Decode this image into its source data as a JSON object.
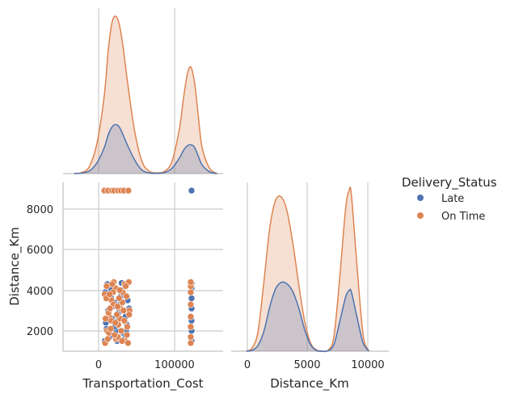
{
  "chart_data": {
    "type": "pairplot",
    "hue": {
      "title": "Delivery_Status",
      "levels": [
        {
          "name": "Late",
          "color": "#4c72b0"
        },
        {
          "name": "On Time",
          "color": "#dd8452"
        }
      ]
    },
    "variables": [
      "Transportation_Cost",
      "Distance_Km"
    ],
    "axes": {
      "Transportation_Cost": {
        "label": "Transportation_Cost",
        "range": [
          -55000,
          158000
        ],
        "ticks": [
          0,
          100000
        ],
        "tick_labels": [
          "0",
          "100000"
        ]
      },
      "Distance_Km": {
        "label": "Distance_Km",
        "range_y": [
          1000,
          9300
        ],
        "ticks_y": [
          2000,
          4000,
          6000,
          8000
        ],
        "tick_labels_y": [
          "2000",
          "4000",
          "6000",
          "8000"
        ],
        "range_x": [
          -1300,
          12200
        ],
        "ticks_x": [
          0,
          5000,
          10000
        ],
        "tick_labels_x": [
          "0",
          "5000",
          "10000"
        ]
      }
    },
    "kde": {
      "Transportation_Cost": {
        "x": [
          -40000,
          -30000,
          -20000,
          -10000,
          0,
          5000,
          10000,
          15000,
          20000,
          25000,
          30000,
          40000,
          50000,
          60000,
          70000,
          80000,
          90000,
          100000,
          105000,
          110000,
          115000,
          120000,
          125000,
          130000,
          140000,
          150000
        ],
        "series": [
          {
            "name": "Late",
            "values": [
              0.0,
              0.003,
              0.015,
              0.06,
              0.15,
              0.22,
              0.265,
              0.28,
              0.265,
              0.22,
              0.17,
              0.08,
              0.02,
              0.004,
              0.002,
              0.006,
              0.03,
              0.09,
              0.13,
              0.158,
              0.165,
              0.15,
              0.1,
              0.05,
              0.01,
              0.0
            ]
          },
          {
            "name": "On Time",
            "values": [
              0.0,
              0.006,
              0.04,
              0.17,
              0.45,
              0.7,
              0.86,
              0.9,
              0.85,
              0.72,
              0.55,
              0.25,
              0.07,
              0.013,
              0.004,
              0.013,
              0.07,
              0.26,
              0.42,
              0.56,
              0.61,
              0.52,
              0.33,
              0.15,
              0.03,
              0.0
            ]
          }
        ]
      },
      "Distance_Km": {
        "x": [
          0,
          500,
          1000,
          1500,
          2000,
          2500,
          3000,
          3500,
          4000,
          4500,
          5000,
          5500,
          6000,
          6500,
          7000,
          7500,
          8000,
          8500,
          8800,
          9000,
          9500,
          10000,
          10500
        ],
        "series": [
          {
            "name": "Late",
            "values": [
              0.0,
              0.006,
              0.035,
              0.12,
              0.27,
              0.38,
              0.42,
              0.41,
              0.36,
              0.26,
              0.13,
              0.04,
              0.004,
              0.0,
              0.003,
              0.04,
              0.18,
              0.33,
              0.37,
              0.36,
              0.2,
              0.05,
              0.0
            ]
          },
          {
            "name": "On Time",
            "values": [
              0.0,
              0.02,
              0.12,
              0.42,
              0.75,
              0.92,
              0.94,
              0.85,
              0.65,
              0.4,
              0.18,
              0.05,
              0.008,
              0.0,
              0.006,
              0.09,
              0.45,
              0.87,
              0.98,
              0.95,
              0.5,
              0.1,
              0.0
            ]
          }
        ]
      }
    },
    "scatter": {
      "x_var": "Transportation_Cost",
      "y_var": "Distance_Km",
      "series": [
        {
          "name": "Late",
          "points": [
            [
              2000,
              8900
            ],
            [
              28000,
              8900
            ],
            [
              116000,
              8900
            ],
            [
              500,
              1500
            ],
            [
              3000,
              2100
            ],
            [
              6000,
              2800
            ],
            [
              9000,
              3600
            ],
            [
              12000,
              4200
            ],
            [
              15000,
              1800
            ],
            [
              18000,
              2500
            ],
            [
              21000,
              3300
            ],
            [
              24000,
              4000
            ],
            [
              27000,
              1600
            ],
            [
              30000,
              2300
            ],
            [
              33000,
              3100
            ],
            [
              1000,
              3900
            ],
            [
              4000,
              4300
            ],
            [
              7000,
              1700
            ],
            [
              10000,
              2600
            ],
            [
              13000,
              3400
            ],
            [
              16000,
              2000
            ],
            [
              19000,
              2900
            ],
            [
              22000,
              3700
            ],
            [
              25000,
              1900
            ],
            [
              28000,
              2700
            ],
            [
              31000,
              3500
            ],
            [
              8000,
              4100
            ],
            [
              14000,
              2200
            ],
            [
              20000,
              3000
            ],
            [
              26000,
              3800
            ],
            [
              2000,
              2400
            ],
            [
              17000,
              1500
            ],
            [
              11000,
              3200
            ],
            [
              23000,
              4350
            ],
            [
              5000,
              3000
            ],
            [
              29000,
              2000
            ],
            [
              116000,
              1500
            ],
            [
              116000,
              2000
            ],
            [
              116000,
              2500
            ],
            [
              116000,
              3100
            ],
            [
              116000,
              3600
            ],
            [
              116000,
              4100
            ],
            [
              116000,
              4350
            ]
          ]
        },
        {
          "name": "On Time",
          "points": [
            [
              0,
              8900
            ],
            [
              5000,
              8900
            ],
            [
              10000,
              8900
            ],
            [
              13000,
              8900
            ],
            [
              18000,
              8900
            ],
            [
              22000,
              8900
            ],
            [
              26000,
              8900
            ],
            [
              32000,
              8900
            ],
            [
              1000,
              1400
            ],
            [
              3500,
              2000
            ],
            [
              6500,
              2700
            ],
            [
              9500,
              3500
            ],
            [
              12500,
              4400
            ],
            [
              15500,
              1600
            ],
            [
              18500,
              2300
            ],
            [
              21500,
              3100
            ],
            [
              24500,
              3900
            ],
            [
              27500,
              1500
            ],
            [
              30500,
              2200
            ],
            [
              33500,
              3000
            ],
            [
              500,
              3800
            ],
            [
              3000,
              4200
            ],
            [
              6000,
              1900
            ],
            [
              9000,
              2500
            ],
            [
              12000,
              3300
            ],
            [
              15000,
              4100
            ],
            [
              18000,
              1700
            ],
            [
              21000,
              2600
            ],
            [
              24000,
              3400
            ],
            [
              27000,
              4300
            ],
            [
              30000,
              1800
            ],
            [
              33000,
              2800
            ],
            [
              2500,
              3600
            ],
            [
              5500,
              2900
            ],
            [
              8500,
              2100
            ],
            [
              11500,
              3900
            ],
            [
              14500,
              2400
            ],
            [
              17500,
              3200
            ],
            [
              20500,
              4000
            ],
            [
              23500,
              1500
            ],
            [
              26500,
              2500
            ],
            [
              29500,
              3700
            ],
            [
              32500,
              4400
            ],
            [
              4500,
              1600
            ],
            [
              7500,
              3100
            ],
            [
              10500,
              4300
            ],
            [
              13500,
              1800
            ],
            [
              16500,
              2800
            ],
            [
              19500,
              3600
            ],
            [
              22500,
              2000
            ],
            [
              25500,
              3000
            ],
            [
              28500,
              4200
            ],
            [
              31500,
              1400
            ],
            [
              1500,
              2600
            ],
            [
              7000,
              3800
            ],
            [
              115000,
              1400
            ],
            [
              115000,
              1700
            ],
            [
              115000,
              2200
            ],
            [
              115000,
              2700
            ],
            [
              115000,
              3300
            ],
            [
              115000,
              3900
            ],
            [
              115000,
              4200
            ],
            [
              115000,
              4400
            ]
          ]
        }
      ]
    }
  }
}
